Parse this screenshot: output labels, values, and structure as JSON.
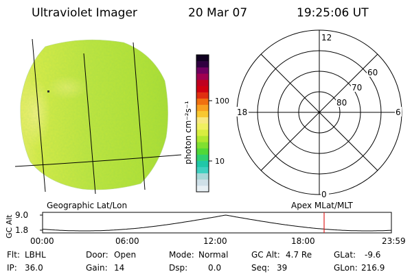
{
  "header": {
    "title": "Ultraviolet Imager",
    "date": "20 Mar 07",
    "time": "19:25:06 UT"
  },
  "colorbar": {
    "unit_label": "photon cm⁻²s⁻¹",
    "ticks": [
      {
        "label": "100",
        "value": 100
      },
      {
        "label": "10",
        "value": 10
      }
    ],
    "colors": [
      "#e8f0f4",
      "#cfe0e8",
      "#a8d8d8",
      "#40d0c0",
      "#20c8a8",
      "#30d070",
      "#50d838",
      "#80e030",
      "#b0e830",
      "#d8ee40",
      "#f0f060",
      "#f8e880",
      "#f8c830",
      "#f8a020",
      "#f07010",
      "#e03010",
      "#d00010",
      "#c00020",
      "#a00050",
      "#700060",
      "#300040",
      "#100020"
    ]
  },
  "image_panel": {
    "label": "Geographic Lat/Lon"
  },
  "polar_panel": {
    "label": "Apex MLat/MLT",
    "mlt_labels": {
      "top": "12",
      "bottom": "0",
      "left": "18",
      "right": "6"
    },
    "lat_labels": [
      "60",
      "70",
      "80"
    ]
  },
  "altitude_plot": {
    "ylabel": "GC Alt",
    "y_ticks": [
      "9.0",
      "1.8"
    ],
    "x_ticks": [
      "00:00",
      "06:00",
      "12:00",
      "18:00",
      "23:59"
    ],
    "marker_color": "#e02020"
  },
  "info": {
    "row1": [
      {
        "key": "Flt:",
        "value": "LBHL"
      },
      {
        "key": "Door:",
        "value": "Open"
      },
      {
        "key": "Mode:",
        "value": "Normal"
      },
      {
        "key": "GC Alt:",
        "value": "4.7 Re"
      },
      {
        "key": "GLat:",
        "value": "-9.6"
      }
    ],
    "row2": [
      {
        "key": "IP:",
        "value": "36.0"
      },
      {
        "key": "Gain:",
        "value": "14"
      },
      {
        "key": "Dsp:",
        "value": "0.0"
      },
      {
        "key": "Seq:",
        "value": "39"
      },
      {
        "key": "GLon:",
        "value": "216.9"
      }
    ]
  }
}
